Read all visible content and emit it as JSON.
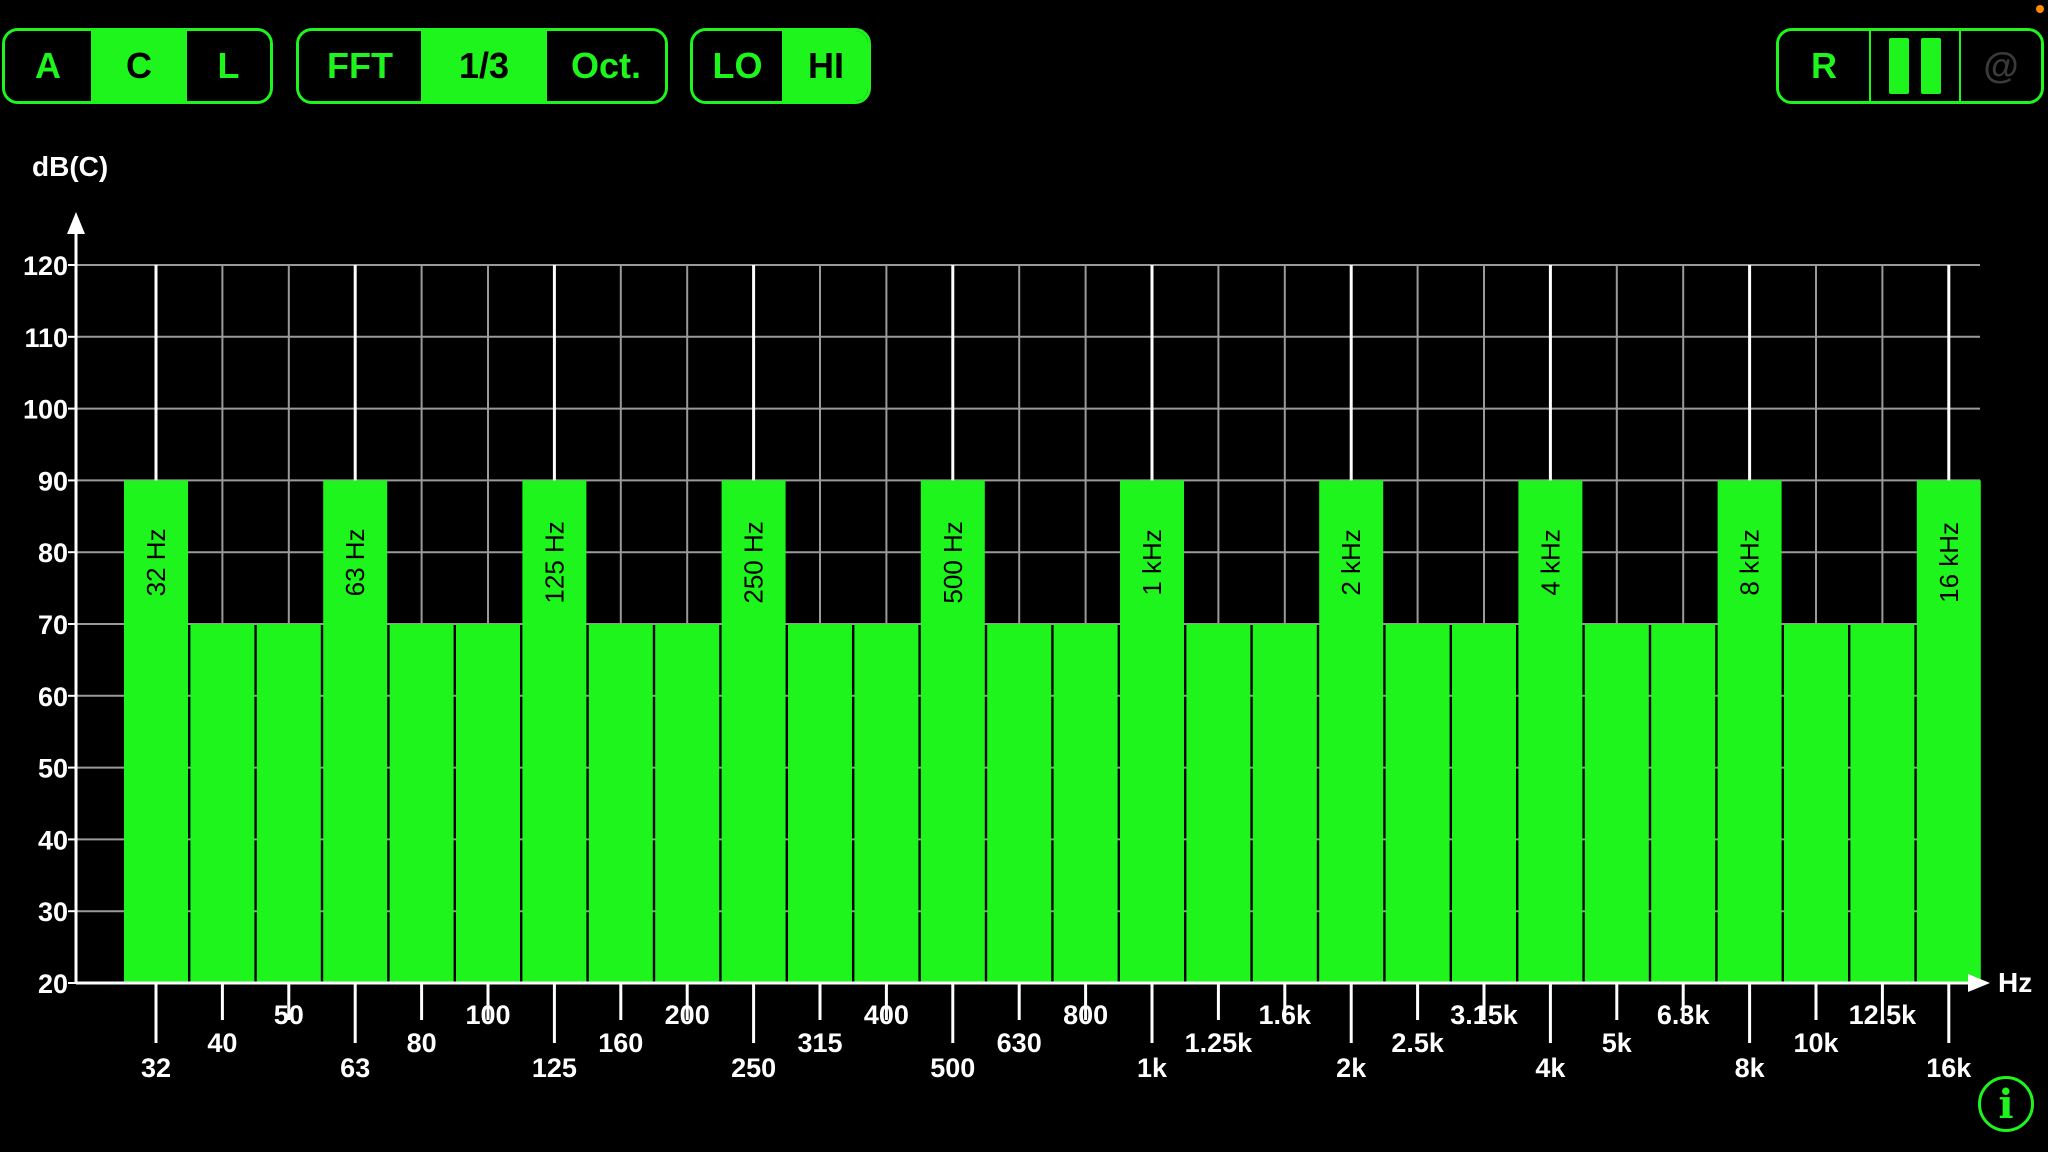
{
  "colors": {
    "accent": "#1df51d",
    "background": "#000000",
    "grid": "#9a9a9a",
    "text": "#ffffff",
    "status_dot": "#ff8a00"
  },
  "toolbar": {
    "weighting": {
      "options": [
        "A",
        "C",
        "L"
      ],
      "selected": "C"
    },
    "resolution": {
      "options": [
        "FFT",
        "1/3",
        "Oct."
      ],
      "selected": "1/3"
    },
    "range": {
      "options": [
        "LO",
        "HI"
      ],
      "selected": "HI"
    },
    "controls": {
      "reset_label": "R",
      "pause_icon": "pause-icon",
      "at_label": "@"
    }
  },
  "info_button": {
    "label": "i",
    "icon": "info-icon"
  },
  "chart_data": {
    "type": "bar",
    "ylabel": "dB(C)",
    "xlabel": "Hz",
    "ylim": [
      20,
      120
    ],
    "yticks": [
      20,
      30,
      40,
      50,
      60,
      70,
      80,
      90,
      100,
      110,
      120
    ],
    "grid": true,
    "categories": [
      "32",
      "40",
      "50",
      "63",
      "80",
      "100",
      "125",
      "160",
      "200",
      "250",
      "315",
      "400",
      "500",
      "630",
      "800",
      "1k",
      "1.25k",
      "1.6k",
      "2k",
      "2.5k",
      "3.15k",
      "4k",
      "5k",
      "6.3k",
      "8k",
      "10k",
      "12.5k",
      "16k"
    ],
    "values": [
      90,
      70,
      70,
      90,
      70,
      70,
      90,
      70,
      70,
      90,
      70,
      70,
      90,
      70,
      70,
      90,
      70,
      70,
      90,
      70,
      70,
      90,
      70,
      70,
      90,
      70,
      70,
      90
    ],
    "bar_labels": [
      "32 Hz",
      "",
      "",
      "63 Hz",
      "",
      "",
      "125 Hz",
      "",
      "",
      "250 Hz",
      "",
      "",
      "500 Hz",
      "",
      "",
      "1 kHz",
      "",
      "",
      "2 kHz",
      "",
      "",
      "4 kHz",
      "",
      "",
      "8 kHz",
      "",
      "",
      "16 kHz"
    ]
  }
}
